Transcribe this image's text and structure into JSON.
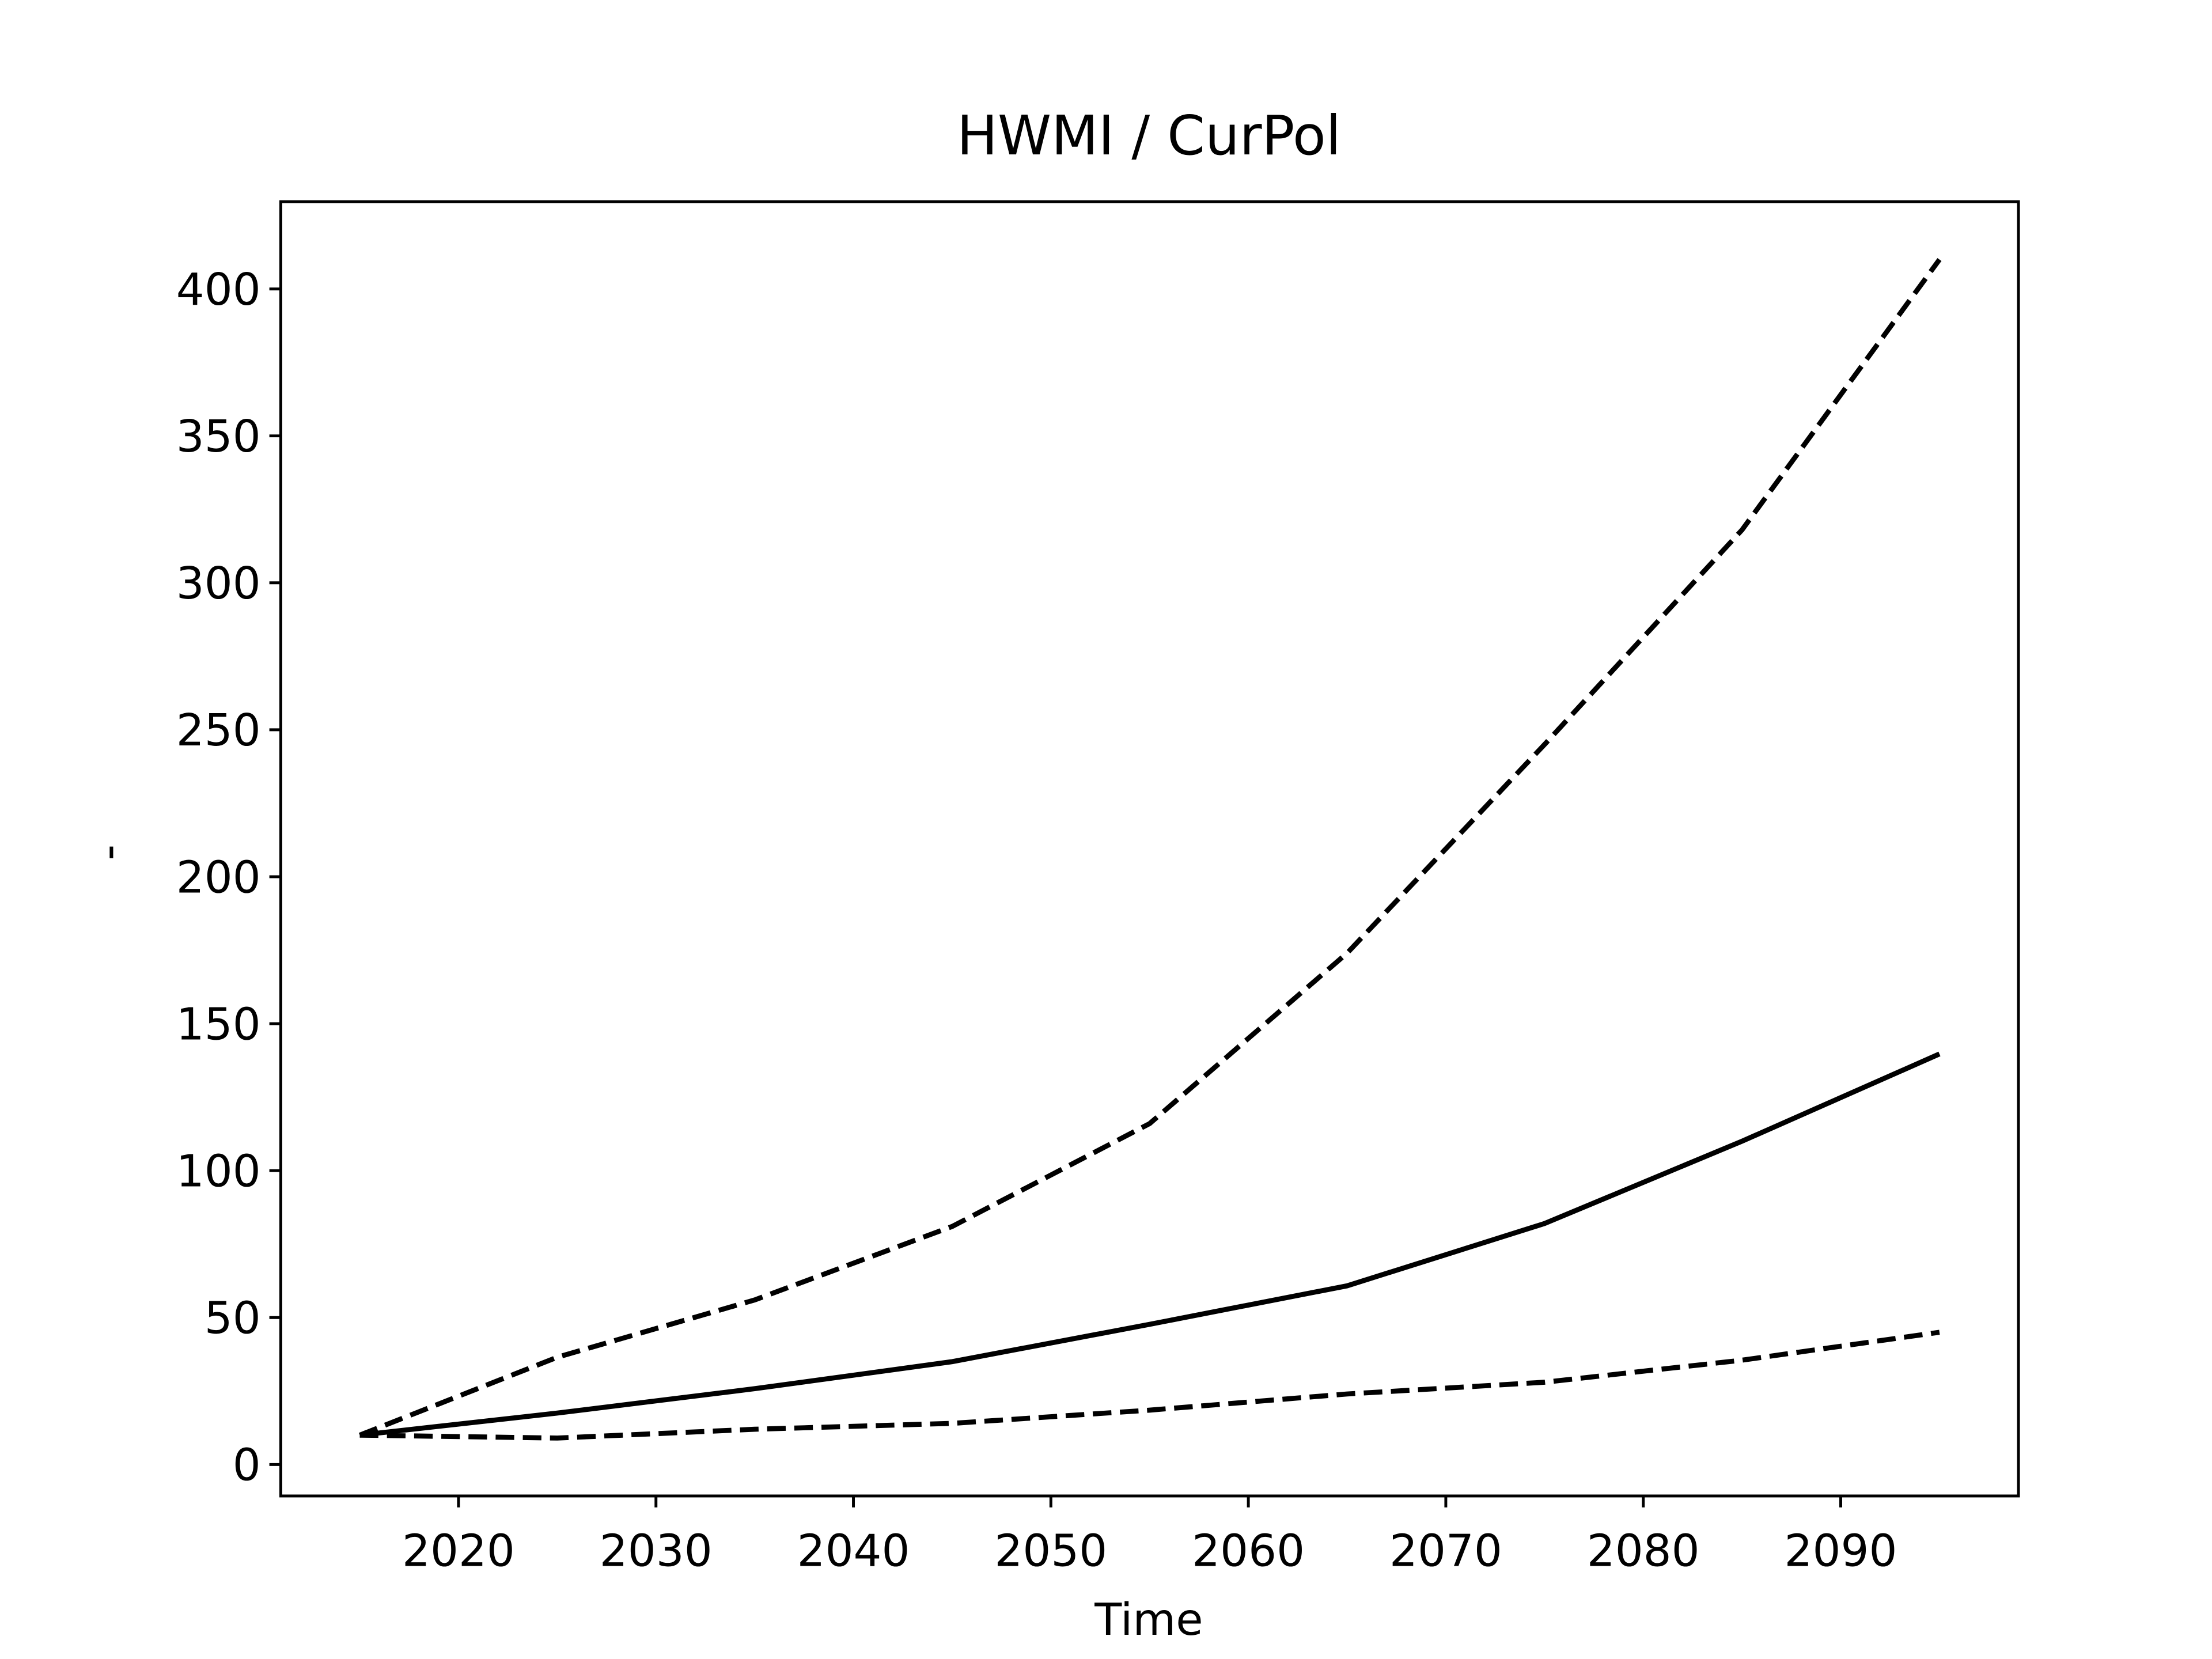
{
  "chart_data": {
    "type": "line",
    "title": "HWMI / CurPol",
    "xlabel": "Time",
    "ylabel": "-",
    "x": [
      2015,
      2025,
      2035,
      2045,
      2055,
      2065,
      2075,
      2085,
      2095
    ],
    "series": [
      {
        "color": "#000000",
        "style": "dashed",
        "values": [
          10,
          36.5,
          56,
          81,
          116,
          174,
          245,
          318,
          410
        ]
      },
      {
        "color": "#000000",
        "style": "solid",
        "values": [
          10,
          17.5,
          25.8,
          35,
          47.7,
          60.8,
          82,
          110,
          139.7
        ]
      },
      {
        "color": "#000000",
        "style": "dashed",
        "values": [
          10,
          9,
          12,
          14,
          18.5,
          24,
          28,
          35.5,
          45
        ]
      }
    ],
    "xlim": [
      2011,
      2099
    ],
    "ylim": [
      -10.7,
      429.7
    ],
    "xticks": [
      2020,
      2030,
      2040,
      2050,
      2060,
      2070,
      2080,
      2090
    ],
    "yticks": [
      0,
      50,
      100,
      150,
      200,
      250,
      300,
      350,
      400
    ],
    "grid": false
  }
}
